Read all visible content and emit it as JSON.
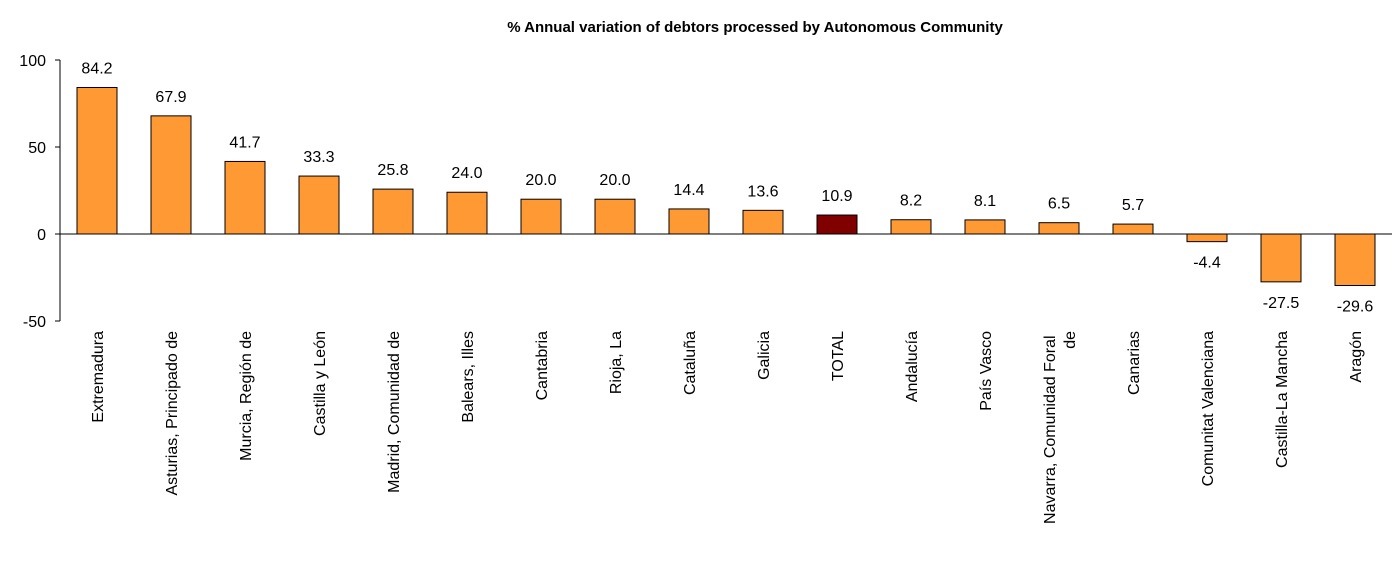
{
  "chart_data": {
    "type": "bar",
    "title": "% Annual variation of debtors processed by Autonomous Community",
    "categories": [
      "Extremadura",
      "Asturias, Principado de",
      "Murcia, Región de",
      "Castilla y León",
      "Madrid, Comunidad de",
      "Balears, Illes",
      "Cantabria",
      "Rioja, La",
      "Cataluña",
      "Galicia",
      "TOTAL",
      "Andalucía",
      "País Vasco",
      "Navarra, Comunidad Foral de",
      "Canarias",
      "Comunitat Valenciana",
      "Castilla-La Mancha",
      "Aragón"
    ],
    "values": [
      84.2,
      67.9,
      41.7,
      33.3,
      25.8,
      24.0,
      20.0,
      20.0,
      14.4,
      13.6,
      10.9,
      8.2,
      8.1,
      6.5,
      5.7,
      -4.4,
      -27.5,
      -29.6
    ],
    "value_labels": [
      "84.2",
      "67.9",
      "41.7",
      "33.3",
      "25.8",
      "24.0",
      "20.0",
      "20.0",
      "14.4",
      "13.6",
      "10.9",
      "8.2",
      "8.1",
      "6.5",
      "5.7",
      "-4.4",
      "-27.5",
      "-29.6"
    ],
    "colors": [
      "#ff9933",
      "#ff9933",
      "#ff9933",
      "#ff9933",
      "#ff9933",
      "#ff9933",
      "#ff9933",
      "#ff9933",
      "#ff9933",
      "#ff9933",
      "#800000",
      "#ff9933",
      "#ff9933",
      "#ff9933",
      "#ff9933",
      "#ff9933",
      "#ff9933",
      "#ff9933"
    ],
    "ylim": [
      -50,
      100
    ],
    "yticks": [
      -50,
      0,
      50,
      100
    ],
    "grid": false
  }
}
